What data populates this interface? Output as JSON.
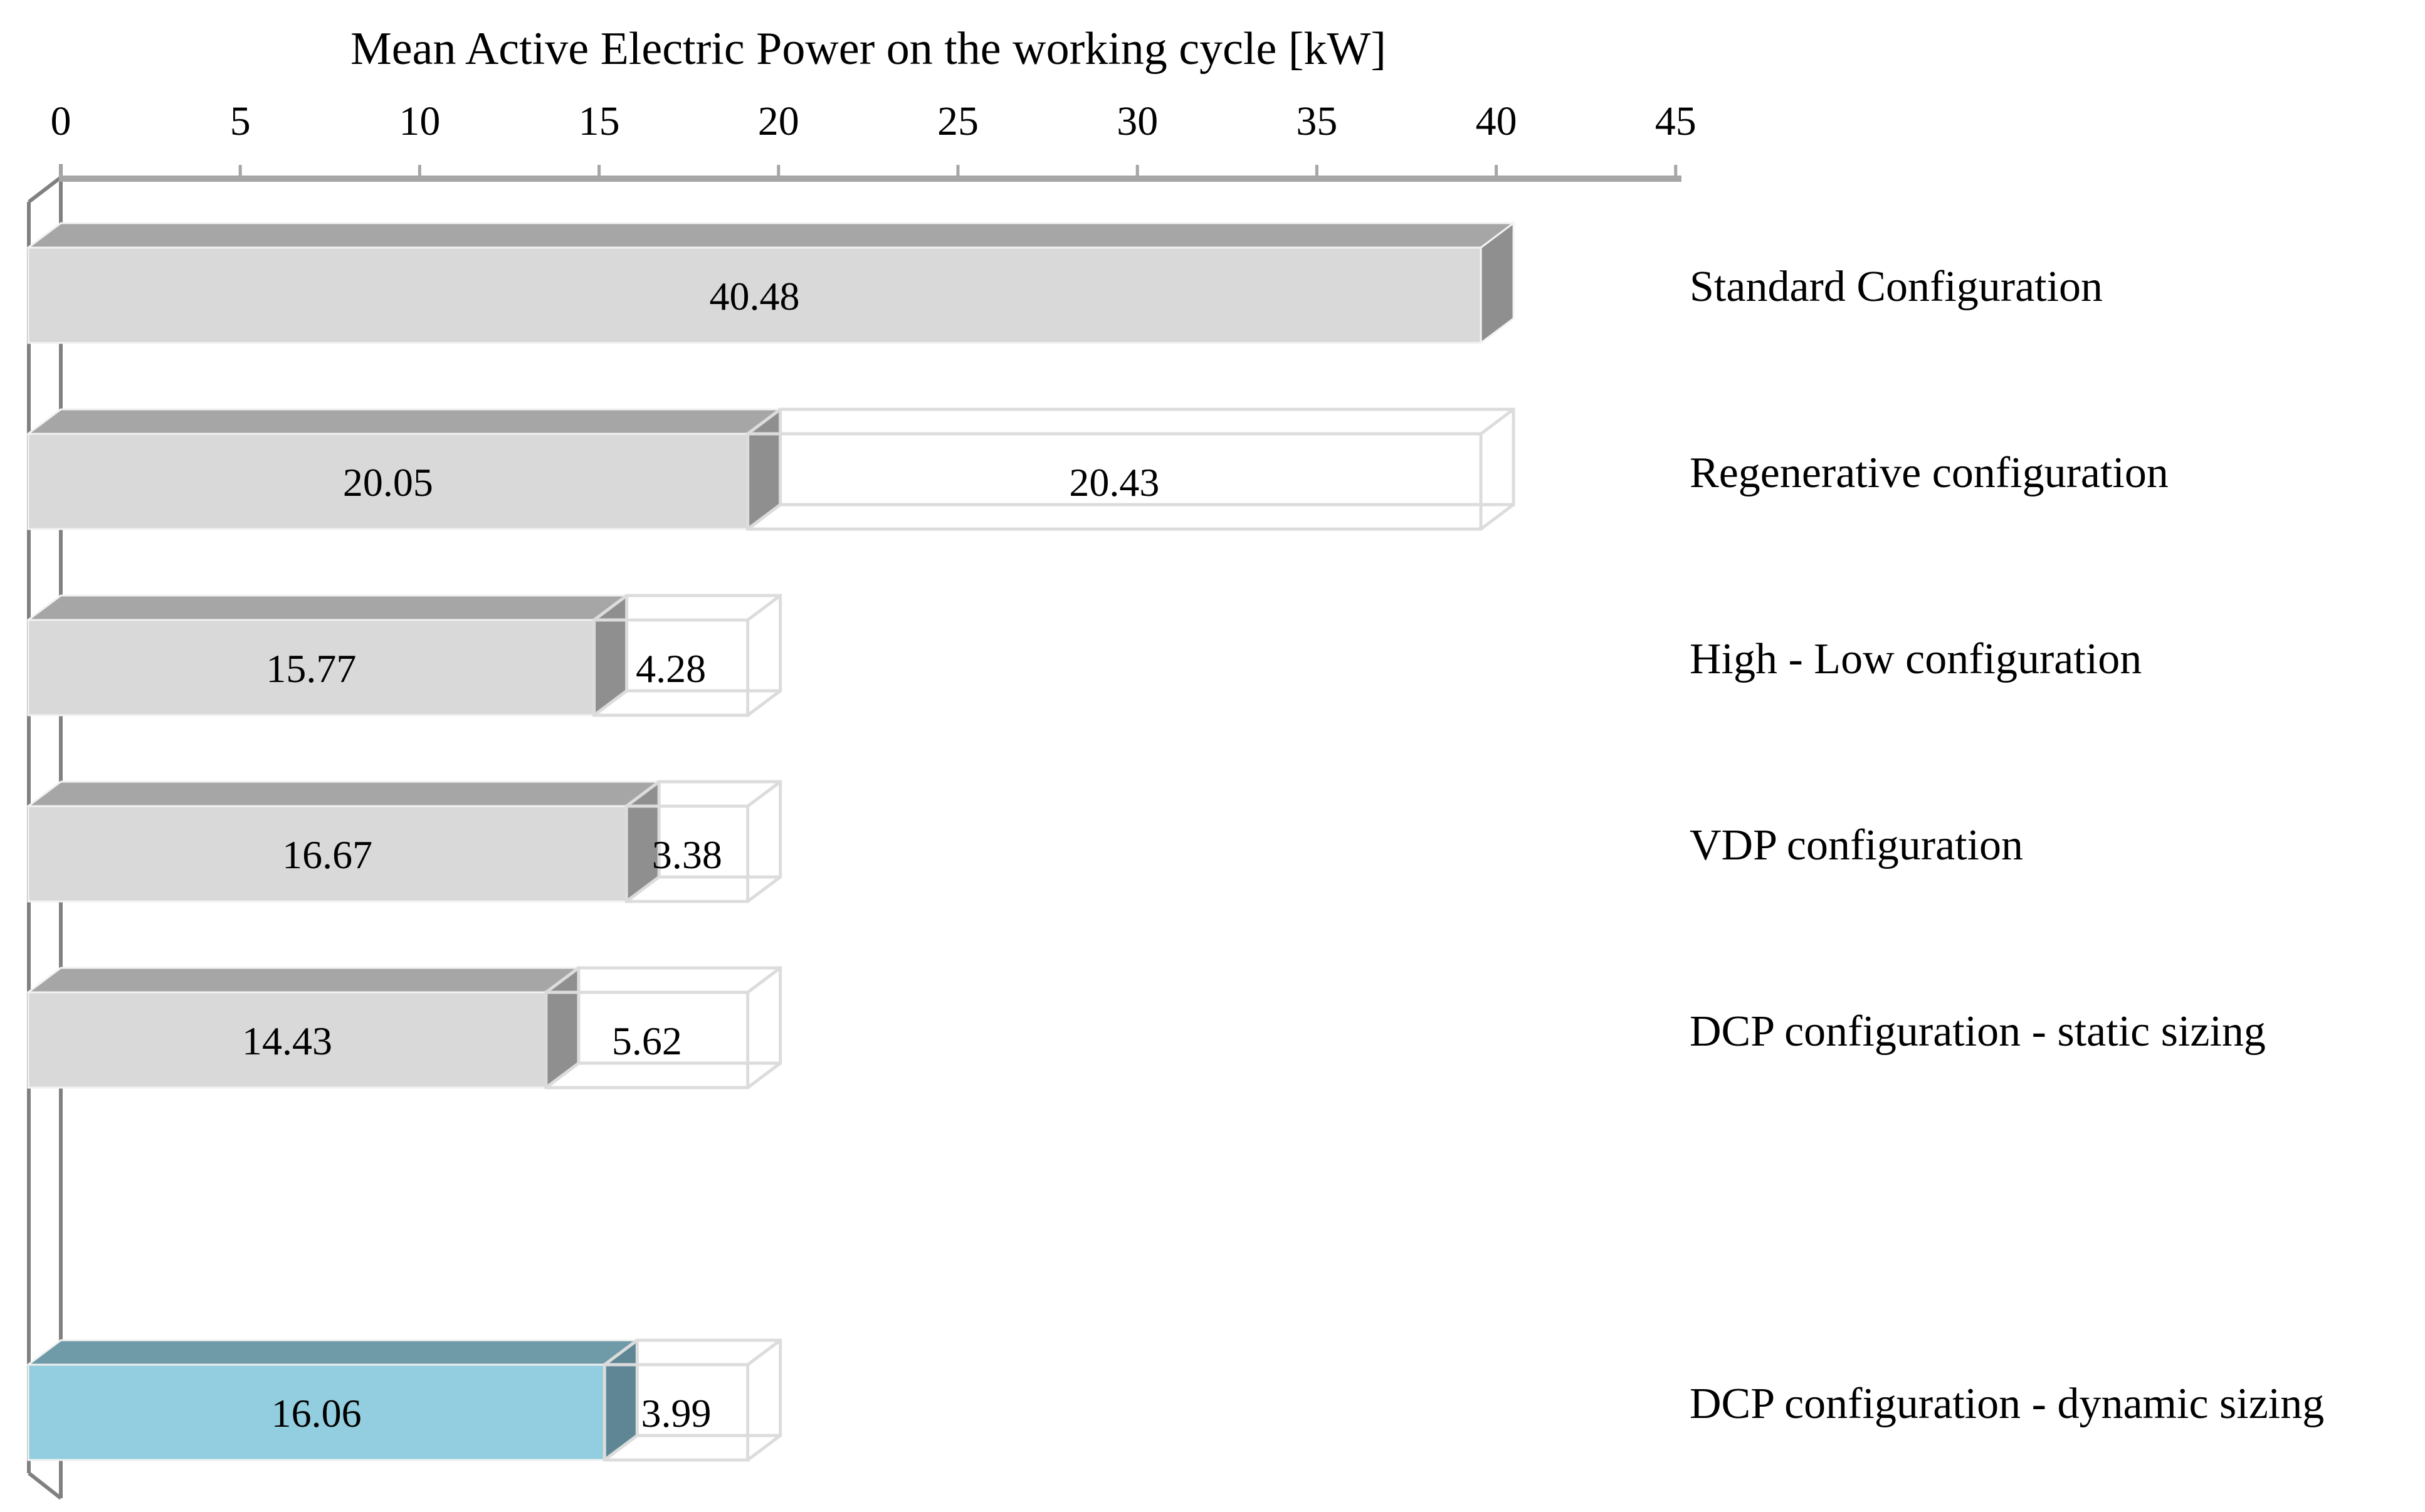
{
  "chart_data": {
    "type": "bar",
    "variant": "3d-horizontal-stacked",
    "title": "Mean Active Electric Power on the working cycle [kW]",
    "x_axis": {
      "min": 0,
      "max": 45,
      "tick_step": 5,
      "ticks": [
        0,
        5,
        10,
        15,
        20,
        25,
        30,
        35,
        40,
        45
      ],
      "position": "top"
    },
    "value_decimals": 2,
    "legend": "none",
    "rows": [
      {
        "label": "Standard Configuration",
        "solid": 40.48,
        "outline": null,
        "palette": "gray"
      },
      {
        "label": "Regenerative configuration",
        "solid": 20.05,
        "outline": 20.43,
        "palette": "gray"
      },
      {
        "label": "High - Low configuration",
        "solid": 15.77,
        "outline": 4.28,
        "palette": "gray"
      },
      {
        "label": "VDP configuration",
        "solid": 16.67,
        "outline": 3.38,
        "palette": "gray"
      },
      {
        "label": "DCP configuration - static sizing",
        "solid": 14.43,
        "outline": 5.62,
        "palette": "gray"
      },
      {
        "label": "",
        "solid": null,
        "outline": null,
        "palette": null
      },
      {
        "label": "DCP configuration - dynamic sizing",
        "solid": 16.06,
        "outline": 3.99,
        "palette": "blue"
      }
    ],
    "colors": {
      "gray": {
        "front": "#d9d9d9",
        "top": "#a6a6a6",
        "side": "#8f8f8f"
      },
      "blue": {
        "front": "#92cedf",
        "top": "#6f9aa8",
        "side": "#5e8695"
      },
      "outline_stroke": "#dcdcdc",
      "bevel": "#f2f2f2",
      "axis": "#a6a6a6",
      "wall": "#808080",
      "text": "#000000"
    }
  }
}
